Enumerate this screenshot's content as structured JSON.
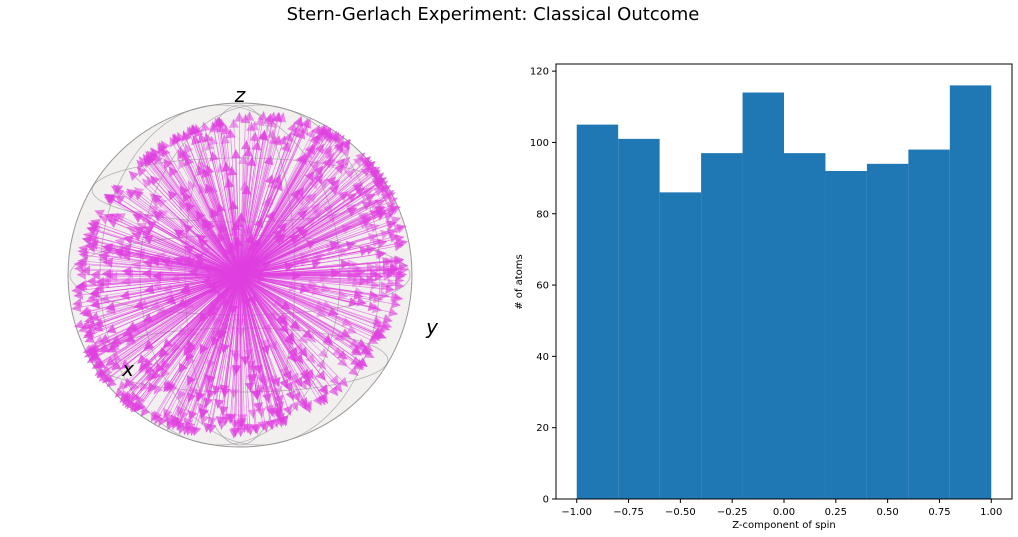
{
  "figure": {
    "title": "Stern-Gerlach Experiment: Classical Outcome"
  },
  "colors": {
    "bar": "#1f77b4",
    "arrow": "#e040e0",
    "sphere": "#d9d0d0"
  },
  "chart_data": [
    {
      "type": "bloch-sphere",
      "axis_labels": {
        "x": "x",
        "y": "y",
        "z": "z"
      },
      "description_vectors": "random unit spin vectors (arrows) from origin, uniformly distributed"
    },
    {
      "type": "bar",
      "xlabel": "Z-component of spin",
      "ylabel": "# of atoms",
      "bin_edges": [
        -1.0,
        -0.8,
        -0.6,
        -0.4,
        -0.2,
        0.0,
        0.2,
        0.4,
        0.6,
        0.8,
        1.0
      ],
      "values": [
        105,
        101,
        86,
        97,
        114,
        97,
        92,
        94,
        98,
        116
      ],
      "xlim": [
        -1.1,
        1.1
      ],
      "ylim": [
        0,
        122
      ],
      "xticks": [
        "−1.00",
        "−0.75",
        "−0.50",
        "−0.25",
        "0.00",
        "0.25",
        "0.50",
        "0.75",
        "1.00"
      ],
      "xtick_values": [
        -1.0,
        -0.75,
        -0.5,
        -0.25,
        0.0,
        0.25,
        0.5,
        0.75,
        1.0
      ],
      "yticks": [
        "0",
        "20",
        "40",
        "60",
        "80",
        "100",
        "120"
      ],
      "ytick_values": [
        0,
        20,
        40,
        60,
        80,
        100,
        120
      ]
    }
  ]
}
